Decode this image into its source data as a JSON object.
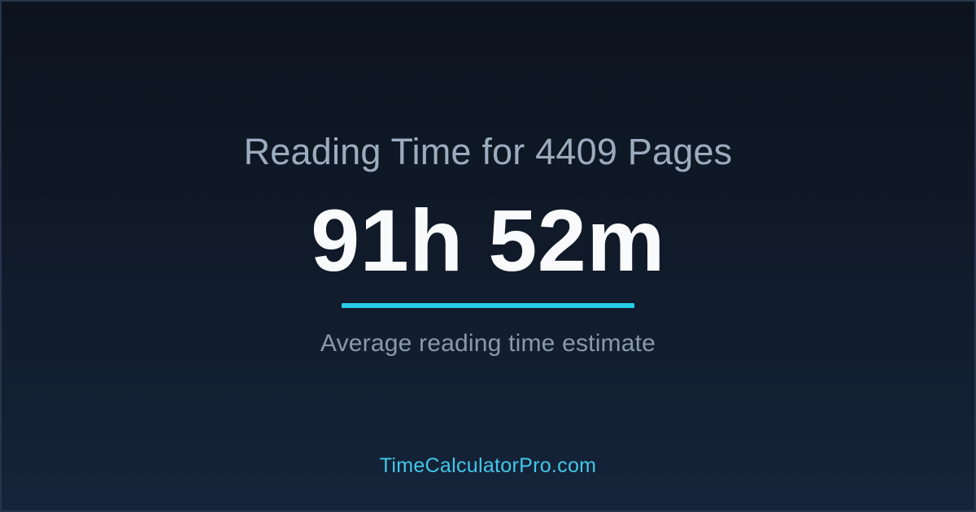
{
  "card": {
    "title": "Reading Time for 4409 Pages",
    "value": "91h 52m",
    "subtitle": "Average reading time estimate",
    "site": "TimeCalculatorPro.com"
  },
  "colors": {
    "bg-top": "#0c131e",
    "bg-mid": "#101a29",
    "bg-bottom": "#15243a",
    "border": "#27344a",
    "title": "#9dabbe",
    "value": "#f8fafc",
    "accent": "#29cde8",
    "subtitle": "#8b99ac",
    "site": "#41c8e8"
  }
}
